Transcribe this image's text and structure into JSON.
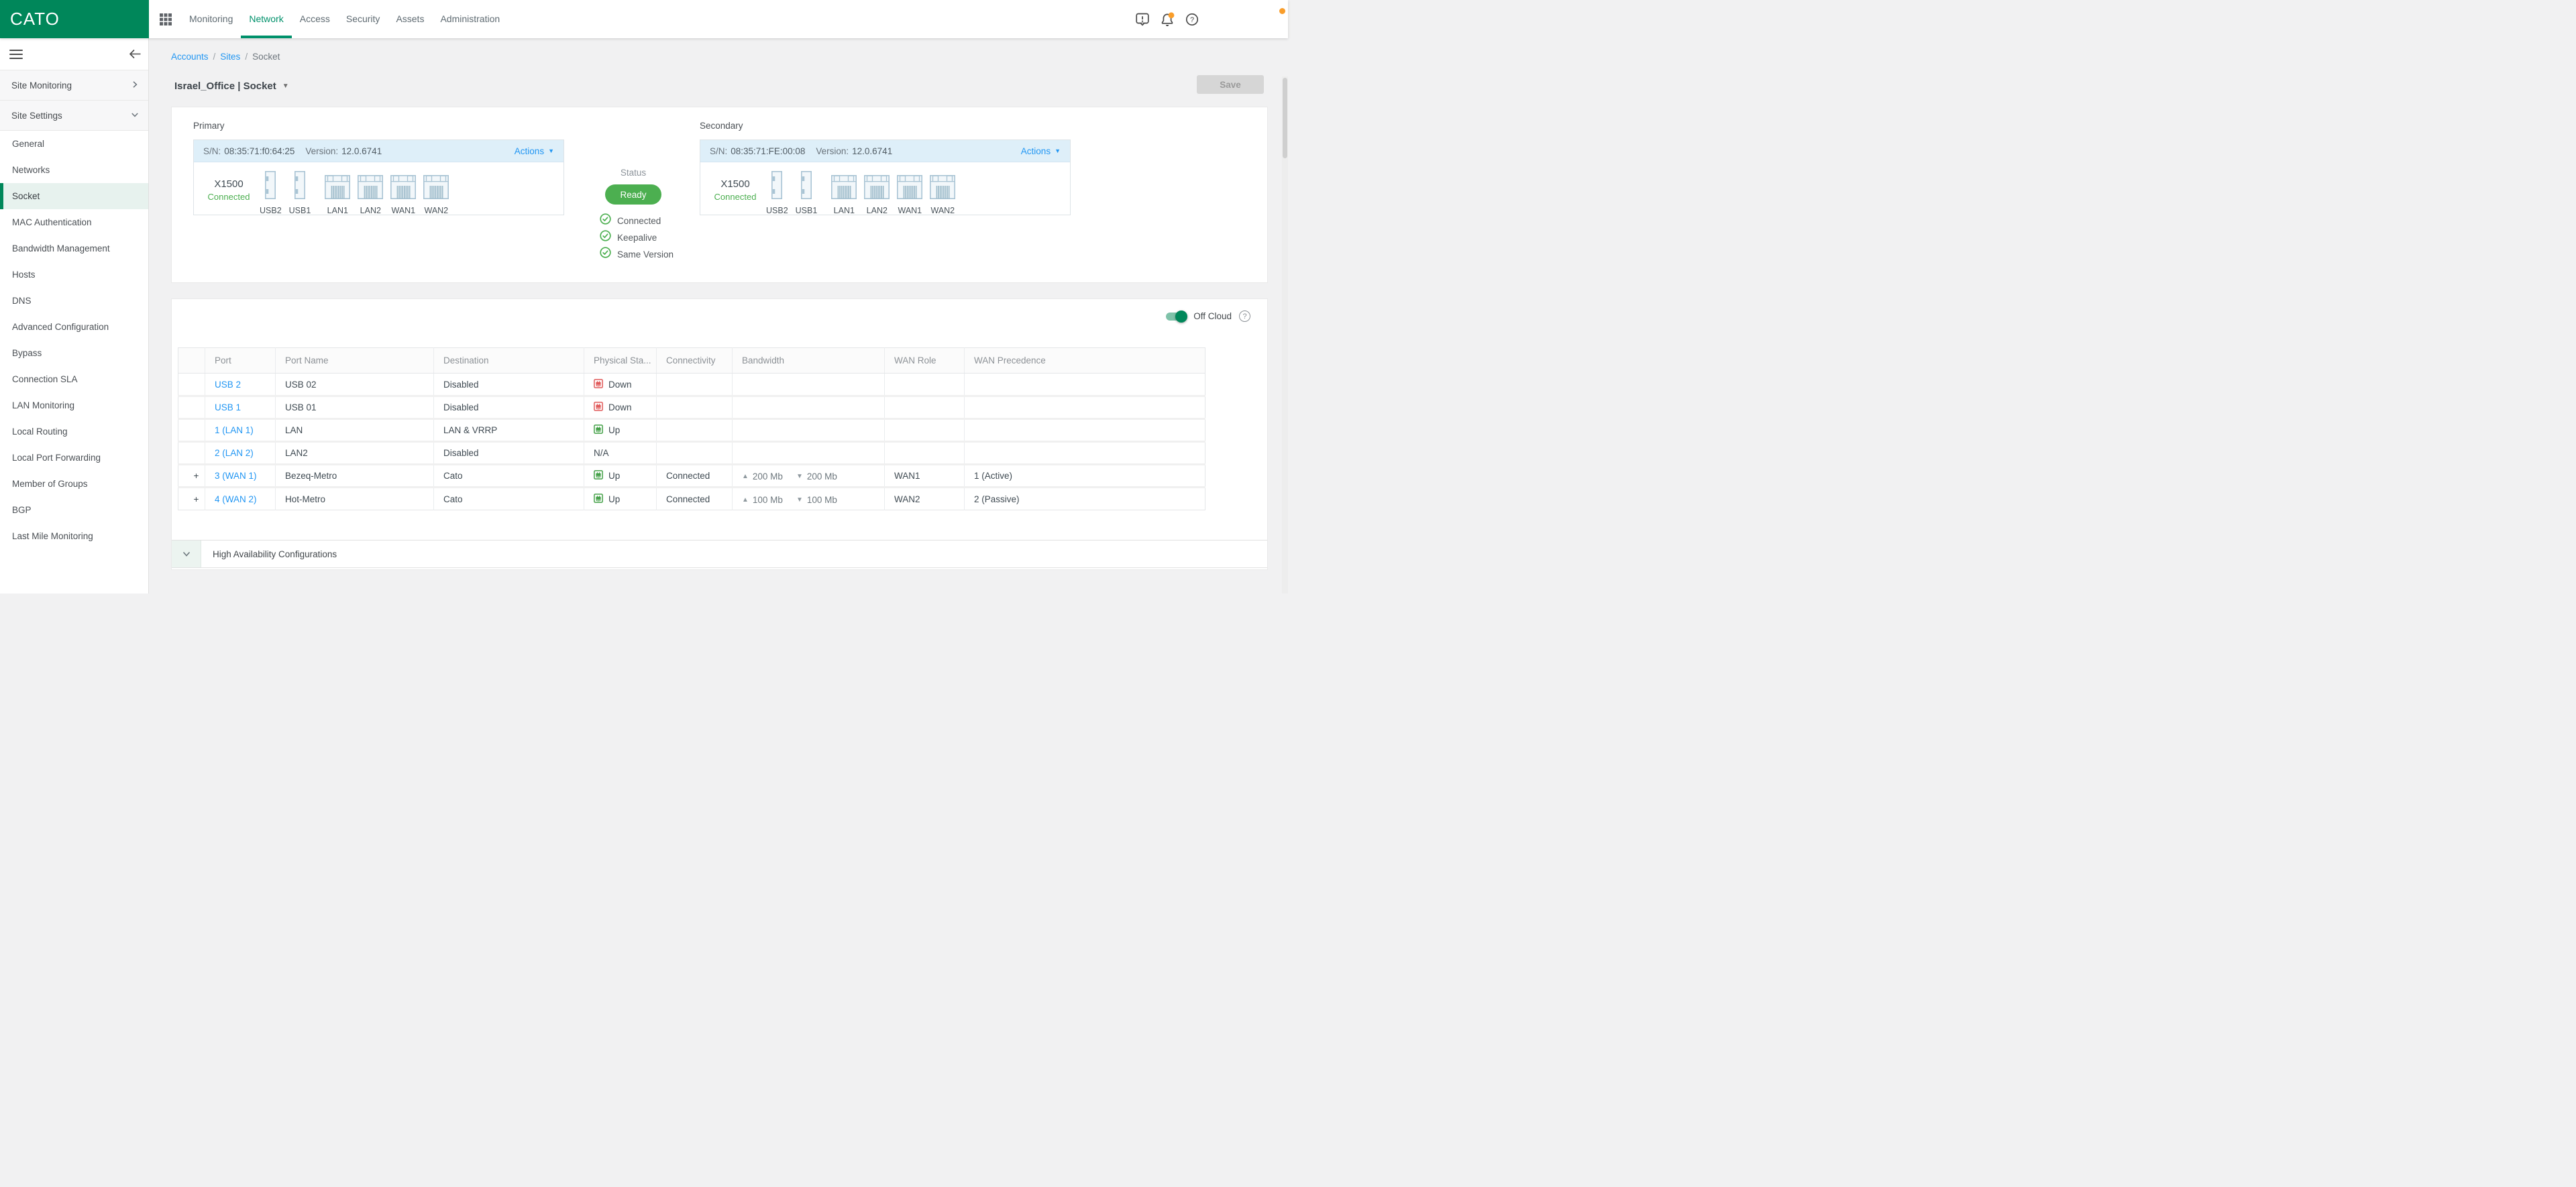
{
  "brand": {
    "name": "CATO",
    "color": "#00875A"
  },
  "topnav": {
    "items": [
      {
        "label": "Monitoring",
        "active": false
      },
      {
        "label": "Network",
        "active": true
      },
      {
        "label": "Access",
        "active": false
      },
      {
        "label": "Security",
        "active": false
      },
      {
        "label": "Assets",
        "active": false
      },
      {
        "label": "Administration",
        "active": false
      }
    ]
  },
  "topbar_icons": [
    {
      "name": "feedback-alert-icon"
    },
    {
      "name": "notifications-bell-icon",
      "badge": true
    },
    {
      "name": "help-icon"
    }
  ],
  "sidebar": {
    "groups": [
      {
        "label": "Site Monitoring",
        "chevron": "right"
      },
      {
        "label": "Site Settings",
        "chevron": "down"
      }
    ],
    "items": [
      {
        "label": "General",
        "active": false
      },
      {
        "label": "Networks",
        "active": false
      },
      {
        "label": "Socket",
        "active": true
      },
      {
        "label": "MAC Authentication",
        "active": false
      },
      {
        "label": "Bandwidth Management",
        "active": false
      },
      {
        "label": "Hosts",
        "active": false
      },
      {
        "label": "DNS",
        "active": false
      },
      {
        "label": "Advanced Configuration",
        "active": false
      },
      {
        "label": "Bypass",
        "active": false
      },
      {
        "label": "Connection SLA",
        "active": false
      },
      {
        "label": "LAN Monitoring",
        "active": false
      },
      {
        "label": "Local Routing",
        "active": false
      },
      {
        "label": "Local Port Forwarding",
        "active": false
      },
      {
        "label": "Member of Groups",
        "active": false
      },
      {
        "label": "BGP",
        "active": false
      },
      {
        "label": "Last Mile Monitoring",
        "active": false
      }
    ]
  },
  "breadcrumb": [
    {
      "label": "Accounts",
      "link": true
    },
    {
      "label": "Sites",
      "link": true
    },
    {
      "label": "Socket",
      "link": false
    }
  ],
  "page": {
    "title": "Israel_Office | Socket",
    "save_label": "Save"
  },
  "sockets": {
    "status": {
      "label": "Status",
      "badge": "Ready",
      "badge_color": "#4CAF50",
      "checks": [
        "Connected",
        "Keepalive",
        "Same Version"
      ]
    },
    "cards": [
      {
        "title": "Primary",
        "sn_label": "S/N:",
        "sn": "08:35:71:f0:64:25",
        "version_label": "Version:",
        "version": "12.0.6741",
        "actions_label": "Actions",
        "model": "X1500",
        "state": "Connected",
        "ports": [
          {
            "name": "USB2",
            "type": "usb"
          },
          {
            "name": "USB1",
            "type": "usb"
          },
          {
            "name": "LAN1",
            "type": "ethernet"
          },
          {
            "name": "LAN2",
            "type": "ethernet"
          },
          {
            "name": "WAN1",
            "type": "ethernet"
          },
          {
            "name": "WAN2",
            "type": "ethernet"
          }
        ]
      },
      {
        "title": "Secondary",
        "sn_label": "S/N:",
        "sn": "08:35:71:FE:00:08",
        "version_label": "Version:",
        "version": "12.0.6741",
        "actions_label": "Actions",
        "model": "X1500",
        "state": "Connected",
        "ports": [
          {
            "name": "USB2",
            "type": "usb"
          },
          {
            "name": "USB1",
            "type": "usb"
          },
          {
            "name": "LAN1",
            "type": "ethernet"
          },
          {
            "name": "LAN2",
            "type": "ethernet"
          },
          {
            "name": "WAN1",
            "type": "ethernet"
          },
          {
            "name": "WAN2",
            "type": "ethernet"
          }
        ]
      }
    ]
  },
  "off_cloud": {
    "label": "Off Cloud",
    "enabled": true
  },
  "ports_table": {
    "columns": [
      "Port",
      "Port Name",
      "Destination",
      "Physical Sta...",
      "Connectivity",
      "Bandwidth",
      "WAN Role",
      "WAN Precedence"
    ],
    "rows": [
      {
        "expander": "",
        "port": "USB 2",
        "port_name": "USB 02",
        "destination": "Disabled",
        "physical": "Down",
        "connectivity": "",
        "bandwidth_up": "",
        "bandwidth_down": "",
        "wan_role": "",
        "wan_precedence": ""
      },
      {
        "expander": "",
        "port": "USB 1",
        "port_name": "USB 01",
        "destination": "Disabled",
        "physical": "Down",
        "connectivity": "",
        "bandwidth_up": "",
        "bandwidth_down": "",
        "wan_role": "",
        "wan_precedence": ""
      },
      {
        "expander": "",
        "port": "1 (LAN 1)",
        "port_name": "LAN",
        "destination": "LAN & VRRP",
        "physical": "Up",
        "connectivity": "",
        "bandwidth_up": "",
        "bandwidth_down": "",
        "wan_role": "",
        "wan_precedence": ""
      },
      {
        "expander": "",
        "port": "2 (LAN 2)",
        "port_name": "LAN2",
        "destination": "Disabled",
        "physical": "N/A",
        "connectivity": "",
        "bandwidth_up": "",
        "bandwidth_down": "",
        "wan_role": "",
        "wan_precedence": ""
      },
      {
        "expander": "+",
        "port": "3 (WAN 1)",
        "port_name": "Bezeq-Metro",
        "destination": "Cato",
        "physical": "Up",
        "connectivity": "Connected",
        "bandwidth_up": "200 Mb",
        "bandwidth_down": "200 Mb",
        "wan_role": "WAN1",
        "wan_precedence": "1 (Active)"
      },
      {
        "expander": "+",
        "port": "4 (WAN 2)",
        "port_name": "Hot-Metro",
        "destination": "Cato",
        "physical": "Up",
        "connectivity": "Connected",
        "bandwidth_up": "100 Mb",
        "bandwidth_down": "100 Mb",
        "wan_role": "WAN2",
        "wan_precedence": "2 (Passive)"
      }
    ]
  },
  "ha_section": {
    "label": "High Availability Configurations"
  },
  "colors": {
    "brand_green": "#00875A",
    "nav_active_green": "#00916B",
    "link_blue": "#2196F3",
    "status_green": "#4CAF50",
    "down_red": "#E05A5A",
    "alert_orange": "#F99D2A",
    "card_header_blue": "#DEEFF9"
  }
}
